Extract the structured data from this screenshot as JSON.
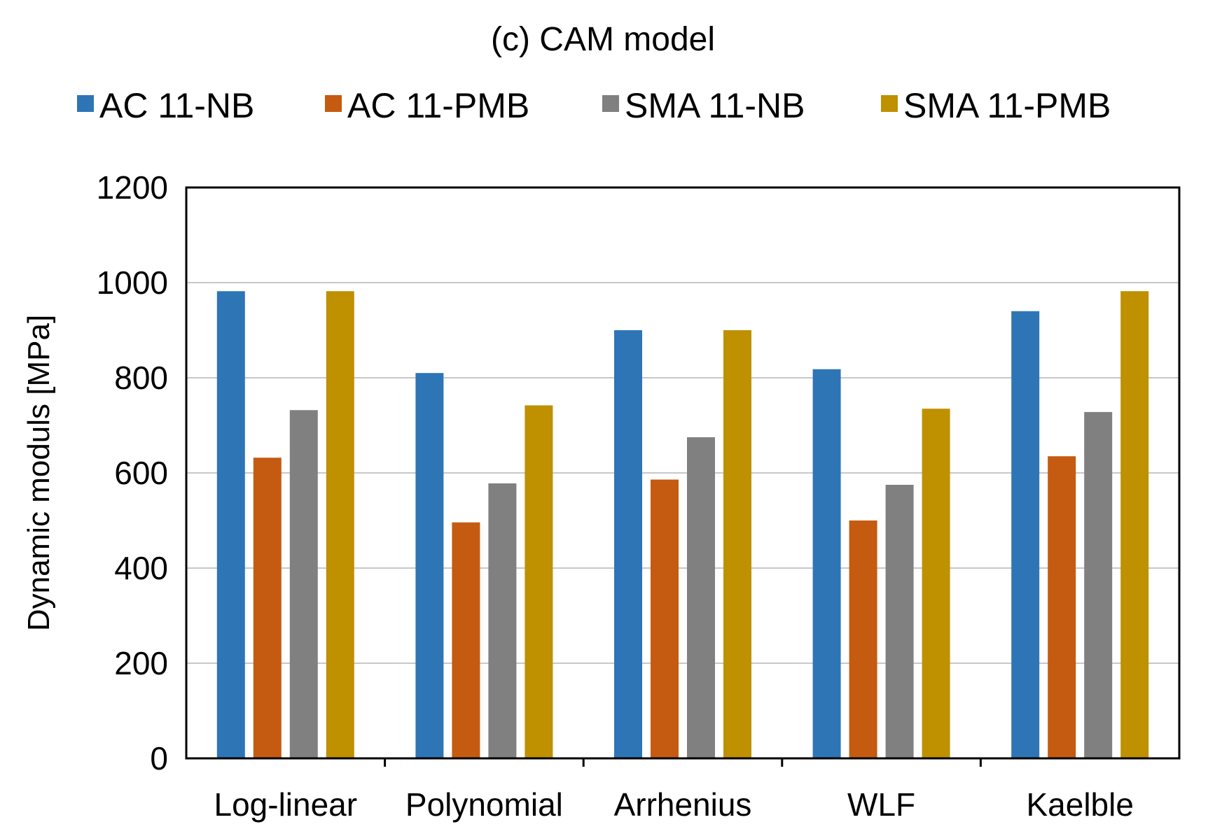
{
  "chart_data": {
    "type": "bar",
    "title": "(c) CAM model",
    "xlabel": "",
    "ylabel": "Dynamic moduls [MPa]",
    "ylim": [
      0,
      1200
    ],
    "yticks": [
      "0",
      "200",
      "400",
      "600",
      "800",
      "1000",
      "1200"
    ],
    "grid": true,
    "legend_position": "top",
    "categories": [
      "Log-linear",
      "Polynomial",
      "Arrhenius",
      "WLF",
      "Kaelble"
    ],
    "series": [
      {
        "name": "AC 11-NB",
        "color": "#2E75B6",
        "values": [
          982,
          810,
          900,
          818,
          940
        ]
      },
      {
        "name": "AC 11-PMB",
        "color": "#C55A11",
        "values": [
          632,
          496,
          586,
          500,
          635
        ]
      },
      {
        "name": "SMA 11-NB",
        "color": "#808080",
        "values": [
          732,
          578,
          675,
          575,
          728
        ]
      },
      {
        "name": "SMA 11-PMB",
        "color": "#BF9000",
        "values": [
          982,
          742,
          900,
          735,
          982
        ]
      }
    ]
  }
}
